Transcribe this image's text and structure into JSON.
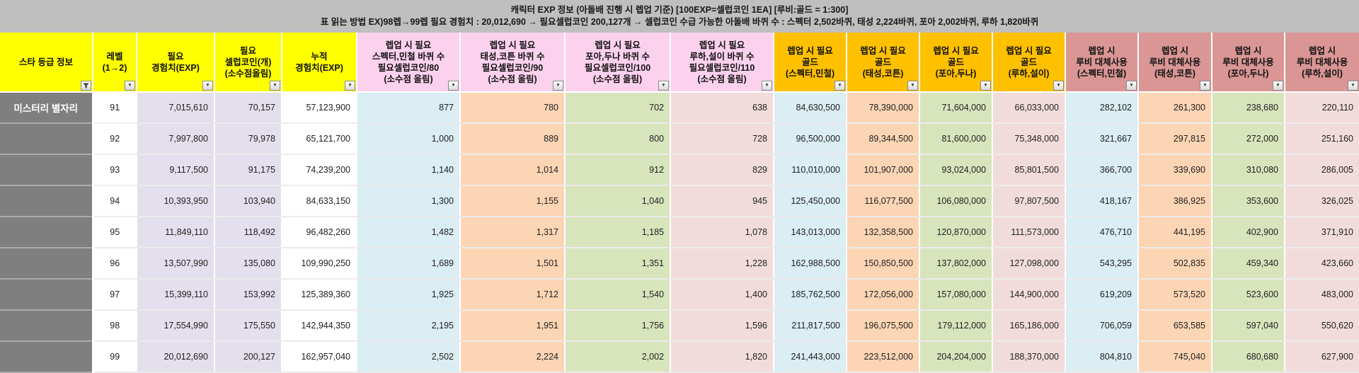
{
  "title": {
    "line1": "캐릭터 EXP 정보 (아돌배 진행 시 렙업 기준) [100EXP=셀럽코인 1EA] [루비:골드 = 1:300]",
    "line2": "표 읽는 방법 EX)98렙→99렙 필요 경험치 : 20,012,690 → 필요셀럽코인 200,127개 → 셀럽코인 수급 가능한 아돌배 바퀴 수 : 스펙터 2,502바퀴, 태성 2,224바퀴, 포아 2,002바퀴, 루하 1,820바퀴"
  },
  "colors": {
    "page_bg": "#bfbfbf",
    "yellow": "#ffff00",
    "pink": "#fcd1ee",
    "gold": "#ffc000",
    "salmon": "#d99694",
    "lavender": "#e4dfec",
    "blue": "#daeef3",
    "peach": "#fcd5b4",
    "green": "#d8e4bc",
    "rose": "#f2dcdb",
    "gray": "#7f7f7f"
  },
  "icons": {
    "dropdown_glyph": "▼"
  },
  "table": {
    "columns": [
      {
        "id": "star-grade",
        "label": "스타 등급 정보",
        "header_bg": "yellow",
        "cell_bg": "gray",
        "align": "center",
        "filter": "funnel"
      },
      {
        "id": "level",
        "label": "레벨\n(1→2)",
        "header_bg": "yellow",
        "cell_bg": "white",
        "align": "center",
        "filter": "dropdown"
      },
      {
        "id": "required-exp",
        "label": "필요\n경험치(EXP)",
        "header_bg": "yellow",
        "cell_bg": "lavender",
        "align": "right",
        "filter": "dropdown"
      },
      {
        "id": "required-celeb-coin",
        "label": "필요\n셀럽코인(개)\n(소수점올림)",
        "header_bg": "yellow",
        "cell_bg": "lavender",
        "align": "right",
        "filter": "dropdown"
      },
      {
        "id": "cumulative-exp",
        "label": "누적\n경험치(EXP)",
        "header_bg": "yellow",
        "cell_bg": "white",
        "align": "right",
        "filter": "dropdown"
      },
      {
        "id": "laps-specter-mincheol",
        "label": "렙업 시 필요\n스펙터,민철 바퀴 수\n필요셀럽코인/80\n(소수점 올림)",
        "header_bg": "pink",
        "cell_bg": "blue",
        "align": "right",
        "filter": "dropdown"
      },
      {
        "id": "laps-taesung-cotton",
        "label": "렙업 시 필요\n태성,코튼 바퀴 수\n필요셀럽코인/90\n(소수점 올림)",
        "header_bg": "pink",
        "cell_bg": "peach",
        "align": "right",
        "filter": "dropdown"
      },
      {
        "id": "laps-poa-duna",
        "label": "렙업 시 필요\n포아,두나 바퀴 수\n필요셀럽코인/100\n(소수점 올림)",
        "header_bg": "pink",
        "cell_bg": "green",
        "align": "right",
        "filter": "dropdown"
      },
      {
        "id": "laps-ruha-seori",
        "label": "렙업 시 필요\n루하,설이 바퀴 수\n필요셀럽코인/110\n(소수점 올림)",
        "header_bg": "pink",
        "cell_bg": "rose",
        "align": "right",
        "filter": "dropdown"
      },
      {
        "id": "gold-specter-mincheol",
        "label": "렙업 시 필요\n골드\n(스펙터,민철)",
        "header_bg": "gold",
        "cell_bg": "blue",
        "align": "right",
        "filter": "dropdown"
      },
      {
        "id": "gold-taesung-cotton",
        "label": "렙업 시 필요\n골드\n(태성,코튼)",
        "header_bg": "gold",
        "cell_bg": "peach",
        "align": "right",
        "filter": "dropdown"
      },
      {
        "id": "gold-poa-duna",
        "label": "렙업 시 필요\n골드\n(포아,두나)",
        "header_bg": "gold",
        "cell_bg": "green",
        "align": "right",
        "filter": "dropdown"
      },
      {
        "id": "gold-ruha-seori",
        "label": "렙업 시 필요\n골드\n(루하,설이)",
        "header_bg": "gold",
        "cell_bg": "rose",
        "align": "right",
        "filter": "dropdown"
      },
      {
        "id": "ruby-specter-mincheol",
        "label": "렙업 시\n루비 대체사용\n(스펙터,민철)",
        "header_bg": "salmon",
        "cell_bg": "blue",
        "align": "right",
        "filter": "dropdown"
      },
      {
        "id": "ruby-taesung-cotton",
        "label": "렙업 시\n루비 대체사용\n(태성,코튼)",
        "header_bg": "salmon",
        "cell_bg": "peach",
        "align": "right",
        "filter": "dropdown"
      },
      {
        "id": "ruby-poa-duna",
        "label": "렙업 시\n루비 대체사용\n(포아,두나)",
        "header_bg": "salmon",
        "cell_bg": "green",
        "align": "right",
        "filter": "dropdown"
      },
      {
        "id": "ruby-ruha-seori",
        "label": "렙업 시\n루비 대체사용\n(루하,설이)",
        "header_bg": "salmon",
        "cell_bg": "rose",
        "align": "right",
        "filter": "dropdown"
      }
    ],
    "rows": [
      {
        "cells": [
          "미스터리 별자리",
          "91",
          "7,015,610",
          "70,157",
          "57,123,900",
          "877",
          "780",
          "702",
          "638",
          "84,630,500",
          "78,390,000",
          "71,604,000",
          "66,033,000",
          "282,102",
          "261,300",
          "238,680",
          "220,110"
        ]
      },
      {
        "cells": [
          "",
          "92",
          "7,997,800",
          "79,978",
          "65,121,700",
          "1,000",
          "889",
          "800",
          "728",
          "96,500,000",
          "89,344,500",
          "81,600,000",
          "75,348,000",
          "321,667",
          "297,815",
          "272,000",
          "251,160"
        ]
      },
      {
        "cells": [
          "",
          "93",
          "9,117,500",
          "91,175",
          "74,239,200",
          "1,140",
          "1,014",
          "912",
          "829",
          "110,010,000",
          "101,907,000",
          "93,024,000",
          "85,801,500",
          "366,700",
          "339,690",
          "310,080",
          "286,005"
        ]
      },
      {
        "cells": [
          "",
          "94",
          "10,393,950",
          "103,940",
          "84,633,150",
          "1,300",
          "1,155",
          "1,040",
          "945",
          "125,450,000",
          "116,077,500",
          "106,080,000",
          "97,807,500",
          "418,167",
          "386,925",
          "353,600",
          "326,025"
        ]
      },
      {
        "cells": [
          "",
          "95",
          "11,849,110",
          "118,492",
          "96,482,260",
          "1,482",
          "1,317",
          "1,185",
          "1,078",
          "143,013,000",
          "132,358,500",
          "120,870,000",
          "111,573,000",
          "476,710",
          "441,195",
          "402,900",
          "371,910"
        ]
      },
      {
        "cells": [
          "",
          "96",
          "13,507,990",
          "135,080",
          "109,990,250",
          "1,689",
          "1,501",
          "1,351",
          "1,228",
          "162,988,500",
          "150,850,500",
          "137,802,000",
          "127,098,000",
          "543,295",
          "502,835",
          "459,340",
          "423,660"
        ]
      },
      {
        "cells": [
          "",
          "97",
          "15,399,110",
          "153,992",
          "125,389,360",
          "1,925",
          "1,712",
          "1,540",
          "1,400",
          "185,762,500",
          "172,056,000",
          "157,080,000",
          "144,900,000",
          "619,209",
          "573,520",
          "523,600",
          "483,000"
        ]
      },
      {
        "cells": [
          "",
          "98",
          "17,554,990",
          "175,550",
          "142,944,350",
          "2,195",
          "1,951",
          "1,756",
          "1,596",
          "211,817,500",
          "196,075,500",
          "179,112,000",
          "165,186,000",
          "706,059",
          "653,585",
          "597,040",
          "550,620"
        ]
      },
      {
        "cells": [
          "",
          "99",
          "20,012,690",
          "200,127",
          "162,957,040",
          "2,502",
          "2,224",
          "2,002",
          "1,820",
          "241,443,000",
          "223,512,000",
          "204,204,000",
          "188,370,000",
          "804,810",
          "745,040",
          "680,680",
          "627,900"
        ]
      }
    ]
  }
}
